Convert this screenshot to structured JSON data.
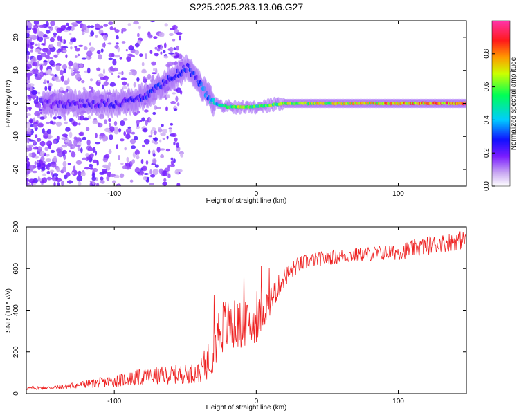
{
  "title": "S225.2025.283.13.06.G27",
  "colors": {
    "snr_line": "#ee2222",
    "axis": "#000000"
  },
  "chart_data": [
    {
      "type": "heatmap",
      "title": "S225.2025.283.13.06.G27",
      "xlabel": "Height of straight line (km)",
      "ylabel": "Frequency (Hz)",
      "xlim": [
        -162,
        148
      ],
      "ylim": [
        -25,
        25
      ],
      "x_ticks": [
        -100,
        0,
        100
      ],
      "x_tick_labels": [
        "-100",
        "0",
        "100"
      ],
      "y_ticks": [
        -20,
        -10,
        0,
        10,
        20
      ],
      "y_tick_labels": [
        "-20",
        "-10",
        "0",
        "10",
        "20"
      ],
      "colorbar": {
        "label": "Normalized spectral amplitude",
        "range": [
          0,
          1
        ],
        "ticks": [
          0.0,
          0.2,
          0.4,
          0.6,
          0.8
        ],
        "tick_labels": [
          "0.0",
          "0.2",
          "0.4",
          "0.6",
          "0.8"
        ],
        "colormap": "rainbow (white-violet-blue-cyan-green-yellow-red-magenta)"
      },
      "ridge": {
        "description": "dominant frequency track vs height",
        "height_km": [
          -150,
          -120,
          -100,
          -85,
          -75,
          -65,
          -55,
          -48,
          -42,
          -35,
          -30,
          -20,
          -10,
          0,
          20,
          50,
          80,
          110,
          148
        ],
        "frequency_hz": [
          0,
          0,
          0,
          1,
          3,
          6,
          9,
          11,
          7,
          3,
          0,
          -1,
          -1,
          -1,
          0,
          0,
          0,
          0,
          0
        ],
        "amplitude": [
          0.2,
          0.25,
          0.25,
          0.25,
          0.3,
          0.3,
          0.3,
          0.3,
          0.3,
          0.4,
          0.45,
          0.6,
          0.7,
          0.6,
          0.7,
          0.75,
          0.8,
          0.85,
          0.9
        ]
      }
    },
    {
      "type": "line",
      "xlabel": "Height of straight line (km)",
      "ylabel": "SNR (10 * v/v)",
      "xlim": [
        -162,
        148
      ],
      "ylim": [
        0,
        800
      ],
      "x_ticks": [
        -100,
        0,
        100
      ],
      "x_tick_labels": [
        "-100",
        "0",
        "100"
      ],
      "y_ticks": [
        0,
        200,
        400,
        600,
        800
      ],
      "y_tick_labels": [
        "0",
        "200",
        "400",
        "600",
        "800"
      ],
      "series": [
        {
          "name": "SNR",
          "envelope_x": [
            -162,
            -140,
            -120,
            -100,
            -80,
            -60,
            -40,
            -32,
            -25,
            -20,
            -10,
            0,
            10,
            20,
            30,
            40,
            60,
            80,
            100,
            120,
            148
          ],
          "mean_y": [
            25,
            30,
            45,
            60,
            80,
            90,
            100,
            180,
            320,
            330,
            330,
            340,
            450,
            560,
            620,
            640,
            660,
            670,
            680,
            710,
            740
          ],
          "noise_y": [
            8,
            10,
            20,
            30,
            40,
            45,
            50,
            110,
            140,
            130,
            110,
            100,
            70,
            50,
            40,
            35,
            35,
            35,
            40,
            45,
            45
          ]
        }
      ]
    }
  ]
}
